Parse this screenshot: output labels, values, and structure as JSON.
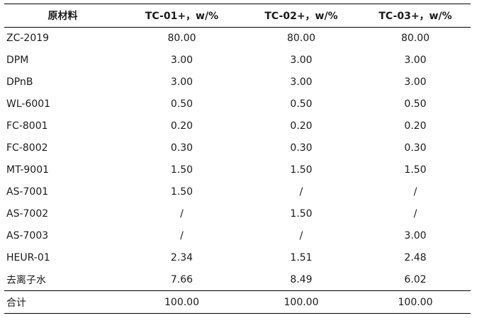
{
  "table": {
    "headers": [
      "原材料",
      "TC-01+，w/%",
      "TC-02+，w/%",
      "TC-03+，w/%"
    ],
    "rows": [
      [
        "ZC-2019",
        "80.00",
        "80.00",
        "80.00"
      ],
      [
        "DPM",
        "3.00",
        "3.00",
        "3.00"
      ],
      [
        "DPnB",
        "3.00",
        "3.00",
        "3.00"
      ],
      [
        "WL-6001",
        "0.50",
        "0.50",
        "0.50"
      ],
      [
        "FC-8001",
        "0.20",
        "0.20",
        "0.20"
      ],
      [
        "FC-8002",
        "0.30",
        "0.30",
        "0.30"
      ],
      [
        "MT-9001",
        "1.50",
        "1.50",
        "1.50"
      ],
      [
        "AS-7001",
        "1.50",
        "/",
        "/"
      ],
      [
        "AS-7002",
        "/",
        "1.50",
        "/"
      ],
      [
        "AS-7003",
        "/",
        "/",
        "3.00"
      ],
      [
        "HEUR-01",
        "2.34",
        "1.51",
        "2.48"
      ],
      [
        "去离子水",
        "7.66",
        "8.49",
        "6.02"
      ]
    ],
    "total": [
      "合计",
      "100.00",
      "100.00",
      "100.00"
    ]
  }
}
